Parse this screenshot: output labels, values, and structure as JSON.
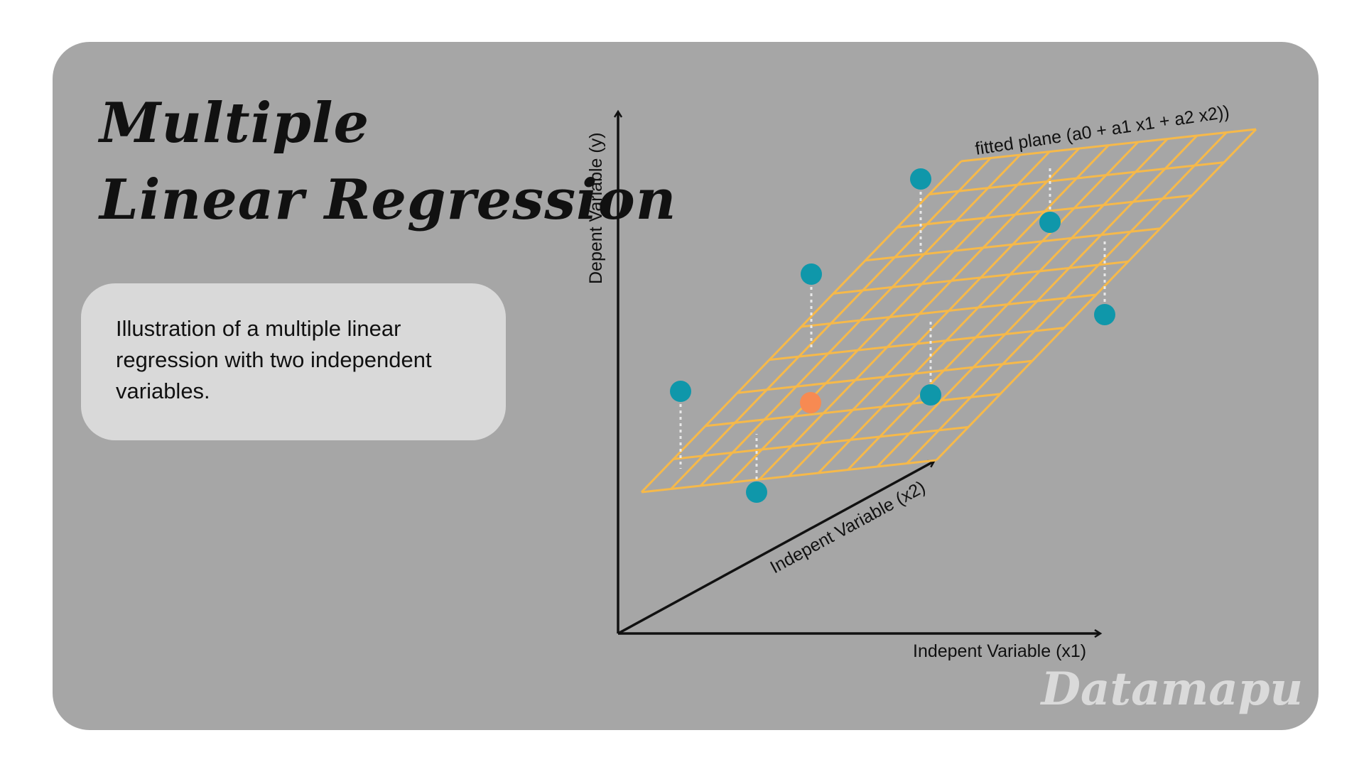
{
  "title": {
    "line1": "Multiple",
    "line2": "Linear Regression"
  },
  "description": "Illustration of a multiple linear regression with two independent variables.",
  "axes": {
    "y_label": "Depent Variable (y)",
    "x1_label": "Indepent Variable (x1)",
    "x2_label": "Indepent Variable (x2)"
  },
  "plane_label": "fitted plane (a0 + a1 x1 + a2 x2))",
  "watermark": "Datamapu",
  "colors": {
    "background_card": "#a6a6a6",
    "description_box": "#d9d9d9",
    "plane_grid": "#f6b94a",
    "data_point": "#0f97aa",
    "highlight_point": "#f78a52",
    "residual_line": "#e8e8e8",
    "axis": "#111111"
  }
}
